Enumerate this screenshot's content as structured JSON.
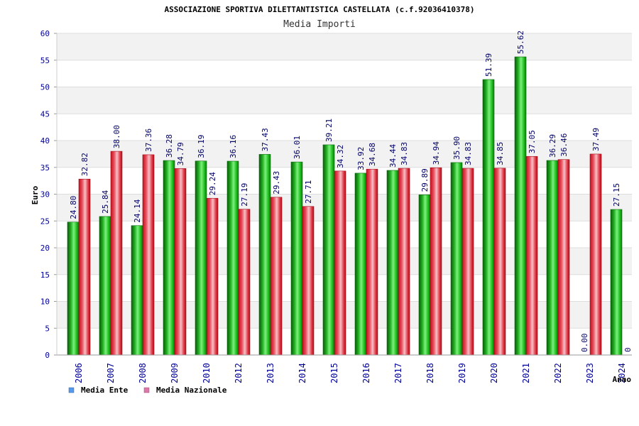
{
  "chart_data": {
    "type": "bar",
    "title": "ASSOCIAZIONE SPORTIVA DILETTANTISTICA CASTELLATA (c.f.92036410378)",
    "subtitle": "Media Importi",
    "xlabel": "Anno",
    "ylabel": "Euro",
    "ylim": [
      0,
      60
    ],
    "yticks": [
      "0",
      "5",
      "10",
      "15",
      "20",
      "25",
      "30",
      "35",
      "40",
      "45",
      "50",
      "55",
      "60"
    ],
    "categories": [
      "2006",
      "2007",
      "2008",
      "2009",
      "2010",
      "2012",
      "2013",
      "2014",
      "2015",
      "2016",
      "2017",
      "2018",
      "2019",
      "2020",
      "2021",
      "2022",
      "2023",
      "2024"
    ],
    "series": [
      {
        "name": "Media Ente",
        "color": "#22aa22",
        "values": [
          24.8,
          25.84,
          24.14,
          36.28,
          36.19,
          36.16,
          37.43,
          36.01,
          39.21,
          33.92,
          34.44,
          29.89,
          35.9,
          51.39,
          55.62,
          36.29,
          0.0,
          27.15
        ],
        "labels": [
          "24.80",
          "25.84",
          "24.14",
          "36.28",
          "36.19",
          "36.16",
          "37.43",
          "36.01",
          "39.21",
          "33.92",
          "34.44",
          "29.89",
          "35.90",
          "51.39",
          "55.62",
          "36.29",
          "0.00",
          "27.15"
        ]
      },
      {
        "name": "Media Nazionale",
        "color": "#dd2233",
        "values": [
          32.82,
          38.0,
          37.36,
          34.79,
          29.24,
          27.19,
          29.43,
          27.71,
          34.32,
          34.68,
          34.83,
          34.94,
          34.83,
          34.85,
          37.05,
          36.46,
          37.49,
          null
        ],
        "labels": [
          "32.82",
          "38.00",
          "37.36",
          "34.79",
          "29.24",
          "27.19",
          "29.43",
          "27.71",
          "34.32",
          "34.68",
          "34.83",
          "34.94",
          "34.83",
          "34.85",
          "37.05",
          "36.46",
          "37.49",
          "0"
        ]
      }
    ],
    "grid": true,
    "legend_position": "bottom-left",
    "legend": [
      {
        "name": "Media Ente",
        "color": "#5599ee"
      },
      {
        "name": "Media Nazionale",
        "color": "#dd77aa"
      }
    ]
  }
}
